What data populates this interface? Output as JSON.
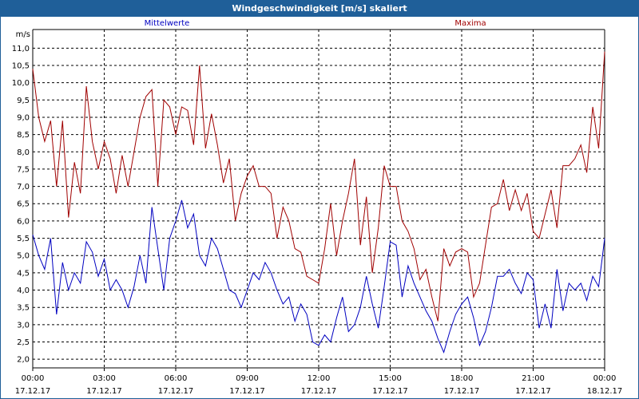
{
  "window": {
    "title": "Windgeschwindigkeit [m/s] skaliert"
  },
  "colors": {
    "titlebar": "#1f5f99",
    "mittelwerte": "#0000c0",
    "maxima": "#a00000",
    "grid": "#000000"
  },
  "chart_data": {
    "type": "line",
    "title": "Windgeschwindigkeit [m/s] skaliert",
    "ylabel": "m/s",
    "xlabel": "",
    "ylim": [
      1.75,
      11.4
    ],
    "xlim": [
      0,
      24
    ],
    "grid": true,
    "y_ticks": [
      "2,0",
      "2,5",
      "3,0",
      "3,5",
      "4,0",
      "4,5",
      "5,0",
      "5,5",
      "6,0",
      "6,5",
      "7,0",
      "7,5",
      "8,0",
      "8,5",
      "9,0",
      "9,5",
      "10,0",
      "10,5",
      "11,0"
    ],
    "x_ticks": [
      {
        "time": "00:00",
        "date": "17.12.17"
      },
      {
        "time": "03:00",
        "date": "17.12.17"
      },
      {
        "time": "06:00",
        "date": "17.12.17"
      },
      {
        "time": "09:00",
        "date": "17.12.17"
      },
      {
        "time": "12:00",
        "date": "17.12.17"
      },
      {
        "time": "15:00",
        "date": "17.12.17"
      },
      {
        "time": "18:00",
        "date": "17.12.17"
      },
      {
        "time": "21:00",
        "date": "17.12.17"
      },
      {
        "time": "00:00",
        "date": "18.12.17"
      }
    ],
    "series": [
      {
        "name": "Mittelwerte",
        "color": "#0000c0",
        "x": [
          0,
          0.25,
          0.5,
          0.75,
          1,
          1.25,
          1.5,
          1.75,
          2,
          2.25,
          2.5,
          2.75,
          3,
          3.25,
          3.5,
          3.75,
          4,
          4.25,
          4.5,
          4.75,
          5,
          5.25,
          5.5,
          5.75,
          6,
          6.25,
          6.5,
          6.75,
          7,
          7.25,
          7.5,
          7.75,
          8,
          8.25,
          8.5,
          8.75,
          9,
          9.25,
          9.5,
          9.75,
          10,
          10.25,
          10.5,
          10.75,
          11,
          11.25,
          11.5,
          11.75,
          12,
          12.25,
          12.5,
          12.75,
          13,
          13.25,
          13.5,
          13.75,
          14,
          14.25,
          14.5,
          14.75,
          15,
          15.25,
          15.5,
          15.75,
          16,
          16.25,
          16.5,
          16.75,
          17,
          17.25,
          17.5,
          17.75,
          18,
          18.25,
          18.5,
          18.75,
          19,
          19.25,
          19.5,
          19.75,
          20,
          20.25,
          20.5,
          20.75,
          21,
          21.25,
          21.5,
          21.75,
          22,
          22.25,
          22.5,
          22.75,
          23,
          23.25,
          23.5,
          23.75,
          24
        ],
        "values": [
          5.6,
          5.0,
          4.6,
          5.5,
          3.3,
          4.8,
          4.0,
          4.5,
          4.2,
          5.4,
          5.1,
          4.4,
          4.9,
          4.0,
          4.3,
          4.0,
          3.5,
          4.1,
          5.0,
          4.2,
          6.4,
          5.2,
          4.0,
          5.5,
          6.0,
          6.6,
          5.8,
          6.2,
          5.0,
          4.7,
          5.5,
          5.2,
          4.6,
          4.0,
          3.9,
          3.5,
          4.0,
          4.5,
          4.3,
          4.8,
          4.5,
          4.0,
          3.6,
          3.8,
          3.1,
          3.6,
          3.3,
          2.5,
          2.4,
          2.7,
          2.5,
          3.2,
          3.8,
          2.8,
          3.0,
          3.5,
          4.4,
          3.6,
          2.9,
          4.1,
          5.4,
          5.3,
          3.8,
          4.7,
          4.2,
          3.8,
          3.4,
          3.1,
          2.6,
          2.2,
          2.8,
          3.3,
          3.6,
          3.8,
          3.2,
          2.4,
          2.8,
          3.5,
          4.4,
          4.4,
          4.6,
          4.2,
          3.9,
          4.5,
          4.3,
          2.9,
          3.6,
          2.9,
          4.6,
          3.4,
          4.2,
          4.0,
          4.2,
          3.7,
          4.4,
          4.1,
          5.5
        ]
      },
      {
        "name": "Maxima",
        "color": "#a00000",
        "x": [
          0,
          0.25,
          0.5,
          0.75,
          1,
          1.25,
          1.5,
          1.75,
          2,
          2.25,
          2.5,
          2.75,
          3,
          3.25,
          3.5,
          3.75,
          4,
          4.25,
          4.5,
          4.75,
          5,
          5.25,
          5.5,
          5.75,
          6,
          6.25,
          6.5,
          6.75,
          7,
          7.25,
          7.5,
          7.75,
          8,
          8.25,
          8.5,
          8.75,
          9,
          9.25,
          9.5,
          9.75,
          10,
          10.25,
          10.5,
          10.75,
          11,
          11.25,
          11.5,
          11.75,
          12,
          12.25,
          12.5,
          12.75,
          13,
          13.25,
          13.5,
          13.75,
          14,
          14.25,
          14.5,
          14.75,
          15,
          15.25,
          15.5,
          15.75,
          16,
          16.25,
          16.5,
          16.75,
          17,
          17.25,
          17.5,
          17.75,
          18,
          18.25,
          18.5,
          18.75,
          19,
          19.25,
          19.5,
          19.75,
          20,
          20.25,
          20.5,
          20.75,
          21,
          21.25,
          21.5,
          21.75,
          22,
          22.25,
          22.5,
          22.75,
          23,
          23.25,
          23.5,
          23.75,
          24
        ],
        "values": [
          10.4,
          9.0,
          8.3,
          8.9,
          7.0,
          8.9,
          6.1,
          7.7,
          6.8,
          9.9,
          8.3,
          7.5,
          8.3,
          7.8,
          6.8,
          7.9,
          7.0,
          8.0,
          9.0,
          9.6,
          9.8,
          7.0,
          9.5,
          9.3,
          8.5,
          9.3,
          9.2,
          8.2,
          10.5,
          8.1,
          9.1,
          8.2,
          7.1,
          7.8,
          6.0,
          6.8,
          7.3,
          7.6,
          7.0,
          7.0,
          6.8,
          5.5,
          6.4,
          6.0,
          5.2,
          5.1,
          4.4,
          4.3,
          4.2,
          5.2,
          6.5,
          5.0,
          6.0,
          6.8,
          7.8,
          5.3,
          6.7,
          4.5,
          5.8,
          7.6,
          7.0,
          7.0,
          6.0,
          5.7,
          5.2,
          4.3,
          4.6,
          3.8,
          3.1,
          5.2,
          4.7,
          5.1,
          5.2,
          5.1,
          3.8,
          4.2,
          5.3,
          6.4,
          6.5,
          7.2,
          6.3,
          6.9,
          6.3,
          6.8,
          5.7,
          5.5,
          6.2,
          6.9,
          5.8,
          7.6,
          7.6,
          7.8,
          8.2,
          7.4,
          9.3,
          8.1,
          10.9
        ]
      }
    ]
  }
}
